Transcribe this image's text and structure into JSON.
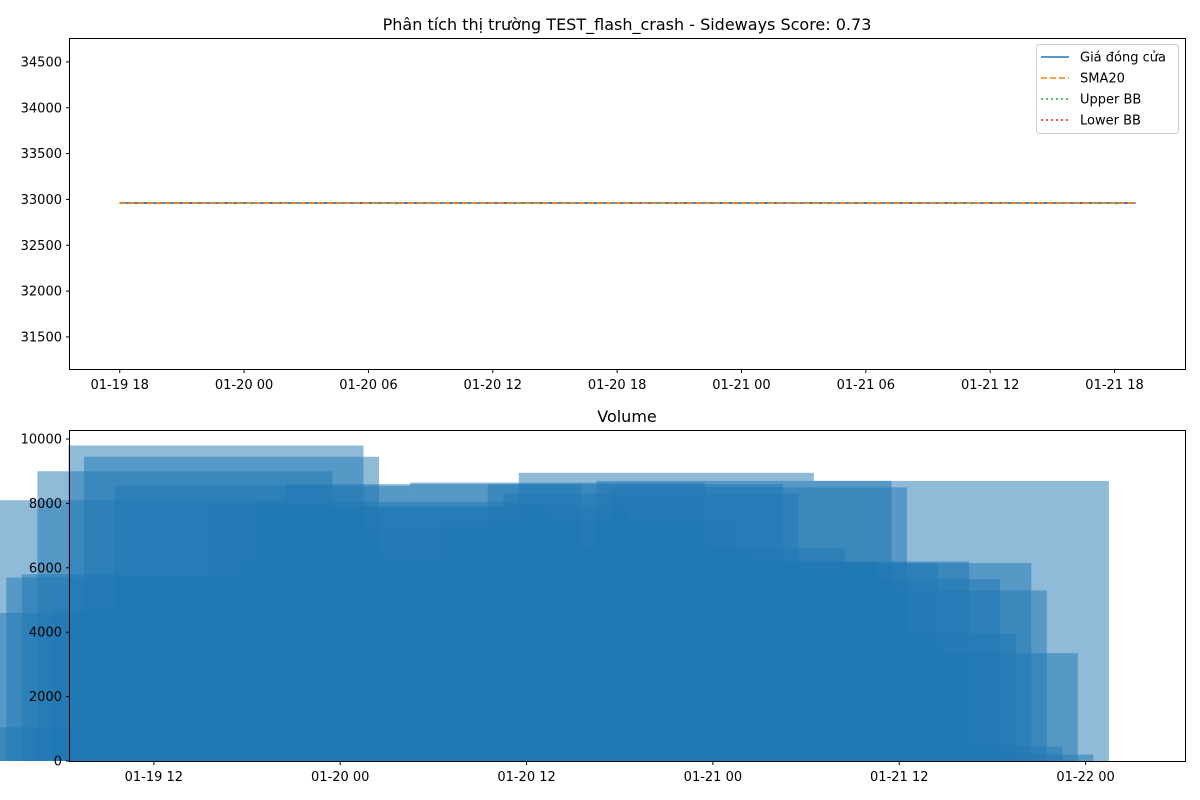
{
  "chart_data": [
    {
      "type": "line",
      "title": "Phân tích thị trường TEST_flash_crash - Sideways Score: 0.73",
      "xlabel": "",
      "ylabel": "",
      "x_ticks": [
        "01-19 18",
        "01-20 00",
        "01-20 06",
        "01-20 12",
        "01-20 18",
        "01-21 00",
        "01-21 06",
        "01-21 12",
        "01-21 18"
      ],
      "y_ticks": [
        "31500",
        "32000",
        "32500",
        "33000",
        "33500",
        "34000",
        "34500"
      ],
      "xlim": [
        "2024-01-19 15:36",
        "2024-01-21 21:24"
      ],
      "ylim": [
        31150,
        34750
      ],
      "x_start": "2024-01-19 18:00",
      "x_end": "2024-01-21 19:00",
      "legend_position": "upper right",
      "grid": false,
      "series": [
        {
          "name": "Giá đóng cửa",
          "value": 32960,
          "color": "#1f77b4",
          "style": "solid"
        },
        {
          "name": "SMA20",
          "value": 32960,
          "color": "#ff7f0e",
          "style": "dashed"
        },
        {
          "name": "Upper BB",
          "value": 32960,
          "color": "#2ca02c",
          "style": "dotted"
        },
        {
          "name": "Lower BB",
          "value": 32960,
          "color": "#d62728",
          "style": "dotted"
        }
      ]
    },
    {
      "type": "bar",
      "title": "Volume",
      "xlabel": "",
      "ylabel": "",
      "x_ticks": [
        "01-19 12",
        "01-20 00",
        "01-20 12",
        "01-21 00",
        "01-21 12",
        "01-22 00"
      ],
      "y_ticks": [
        "0",
        "2000",
        "4000",
        "6000",
        "8000",
        "10000"
      ],
      "xlim": [
        "2024-01-19 06:36",
        "2024-01-22 06:24"
      ],
      "ylim": [
        0,
        10250
      ],
      "grid": false,
      "bar_color": "#1f77b4",
      "bar_opacity": 0.5,
      "bar_width_hours": 19,
      "bars": [
        {
          "x": "2024-01-19 09:00",
          "value": 1050
        },
        {
          "x": "2024-01-19 10:00",
          "value": 4600
        },
        {
          "x": "2024-01-19 11:00",
          "value": 8100
        },
        {
          "x": "2024-01-19 12:00",
          "value": 5700
        },
        {
          "x": "2024-01-19 13:00",
          "value": 5800
        },
        {
          "x": "2024-01-19 14:00",
          "value": 9000
        },
        {
          "x": "2024-01-19 15:00",
          "value": 4700
        },
        {
          "x": "2024-01-19 16:00",
          "value": 9800
        },
        {
          "x": "2024-01-19 17:00",
          "value": 9450
        },
        {
          "x": "2024-01-19 19:00",
          "value": 8550
        },
        {
          "x": "2024-01-19 23:00",
          "value": 5500
        },
        {
          "x": "2024-01-20 01:00",
          "value": 7900
        },
        {
          "x": "2024-01-20 03:00",
          "value": 6300
        },
        {
          "x": "2024-01-20 04:00",
          "value": 8050
        },
        {
          "x": "2024-01-20 05:00",
          "value": 7200
        },
        {
          "x": "2024-01-20 06:00",
          "value": 8600
        },
        {
          "x": "2024-01-20 07:00",
          "value": 5200
        },
        {
          "x": "2024-01-20 09:00",
          "value": 7900
        },
        {
          "x": "2024-01-20 11:00",
          "value": 5500
        },
        {
          "x": "2024-01-20 12:00",
          "value": 6000
        },
        {
          "x": "2024-01-20 14:00",
          "value": 8650
        },
        {
          "x": "2024-01-20 16:00",
          "value": 7500
        },
        {
          "x": "2024-01-20 17:00",
          "value": 6600
        },
        {
          "x": "2024-01-20 19:00",
          "value": 8600
        },
        {
          "x": "2024-01-20 20:00",
          "value": 8300
        },
        {
          "x": "2024-01-20 21:00",
          "value": 8950
        },
        {
          "x": "2024-01-20 23:00",
          "value": 6600
        },
        {
          "x": "2024-01-21 01:00",
          "value": 6200
        },
        {
          "x": "2024-01-21 02:00",
          "value": 8700
        },
        {
          "x": "2024-01-21 03:00",
          "value": 8500
        },
        {
          "x": "2024-01-21 05:00",
          "value": 6150
        },
        {
          "x": "2024-01-21 07:00",
          "value": 6200
        },
        {
          "x": "2024-01-21 09:00",
          "value": 5650
        },
        {
          "x": "2024-01-21 10:00",
          "value": 3950
        },
        {
          "x": "2024-01-21 11:00",
          "value": 6150
        },
        {
          "x": "2024-01-21 12:00",
          "value": 5300
        },
        {
          "x": "2024-01-21 13:00",
          "value": 450
        },
        {
          "x": "2024-01-21 14:00",
          "value": 3350
        },
        {
          "x": "2024-01-21 15:00",
          "value": 200
        },
        {
          "x": "2024-01-21 16:00",
          "value": 8700
        }
      ]
    }
  ]
}
